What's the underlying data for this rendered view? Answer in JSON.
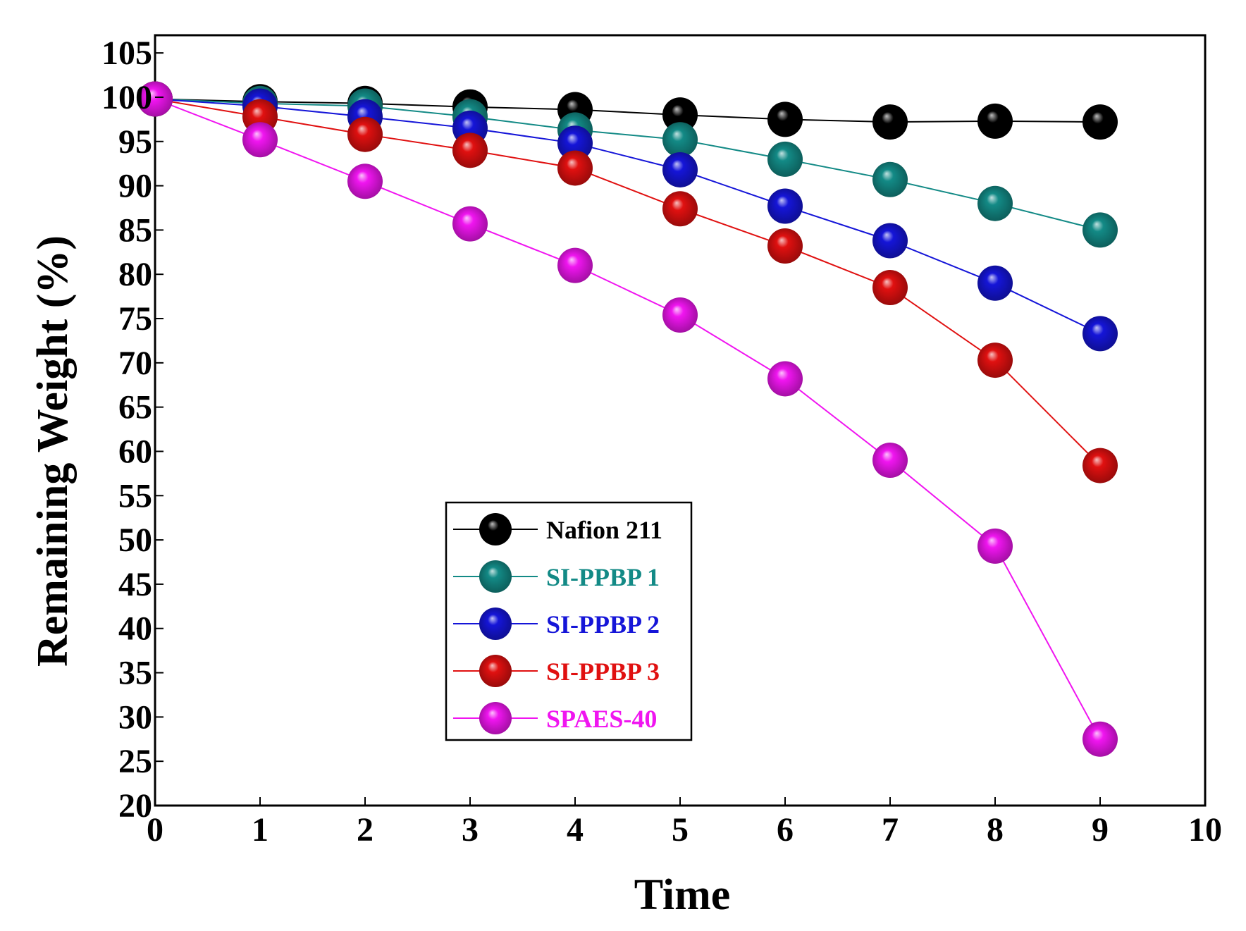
{
  "chart_data": {
    "type": "line",
    "title": "",
    "xlabel": "Time",
    "ylabel": "Remaining Weight (%)",
    "xlim": [
      0,
      10
    ],
    "ylim": [
      20,
      107
    ],
    "xticks": [
      0,
      1,
      2,
      3,
      4,
      5,
      6,
      7,
      8,
      9,
      10
    ],
    "yticks": [
      20,
      25,
      30,
      35,
      40,
      45,
      50,
      55,
      60,
      65,
      70,
      75,
      80,
      85,
      90,
      95,
      100,
      105
    ],
    "grid": false,
    "legend_position": "center",
    "x": [
      0,
      1,
      2,
      3,
      4,
      5,
      6,
      7,
      8,
      9
    ],
    "series": [
      {
        "name": "Nafion 211",
        "color": "#000000",
        "values": [
          99.8,
          99.5,
          99.3,
          98.9,
          98.6,
          98.0,
          97.5,
          97.2,
          97.3,
          97.2
        ]
      },
      {
        "name": "SI-PPBP 1",
        "color": "#138a86",
        "values": [
          99.8,
          99.3,
          99.0,
          97.8,
          96.3,
          95.2,
          93.0,
          90.7,
          88.0,
          85.0
        ]
      },
      {
        "name": "SI-PPBP 2",
        "color": "#1515d8",
        "values": [
          99.8,
          99.0,
          97.8,
          96.5,
          94.8,
          91.8,
          87.7,
          83.8,
          79.0,
          73.3
        ]
      },
      {
        "name": "SI-PPBP 3",
        "color": "#e01010",
        "values": [
          99.8,
          97.8,
          95.8,
          94.0,
          92.0,
          87.4,
          83.2,
          78.5,
          70.3,
          58.4
        ]
      },
      {
        "name": "SPAES-40",
        "color": "#f015f0",
        "values": [
          99.8,
          95.2,
          90.5,
          85.7,
          81.0,
          75.4,
          68.2,
          59.0,
          49.3,
          27.5
        ]
      }
    ]
  }
}
